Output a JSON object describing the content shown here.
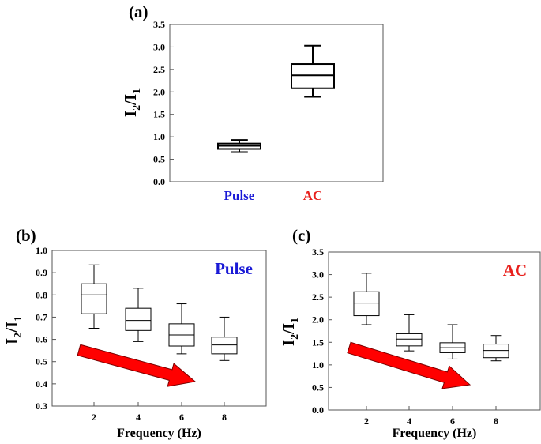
{
  "chart_data": [
    {
      "type": "box",
      "panel_label": "(a)",
      "ylabel_main": "I",
      "ylabel_sub1": "2",
      "ylabel_mid": "/I",
      "ylabel_sub2": "1",
      "ylim": [
        0.0,
        3.5
      ],
      "yticks": [
        "0.0",
        "0.5",
        "1.0",
        "1.5",
        "2.0",
        "2.5",
        "3.0",
        "3.5"
      ],
      "categories": [
        "Pulse",
        "AC"
      ],
      "category_colors": [
        "#1a1ad6",
        "#e8201c"
      ],
      "boxes": [
        {
          "min": 0.66,
          "q1": 0.73,
          "median": 0.8,
          "q3": 0.85,
          "max": 0.93
        },
        {
          "min": 1.89,
          "q1": 2.08,
          "median": 2.37,
          "q3": 2.62,
          "max": 3.03
        }
      ],
      "grid": false
    },
    {
      "type": "box",
      "panel_label": "(b)",
      "ylabel_main": "I",
      "ylabel_sub1": "2",
      "ylabel_mid": "/I",
      "ylabel_sub2": "1",
      "xlabel": "Frequency (Hz)",
      "ylim": [
        0.3,
        1.0
      ],
      "yticks": [
        "0.3",
        "0.4",
        "0.5",
        "0.6",
        "0.7",
        "0.8",
        "0.9",
        "1.0"
      ],
      "categories": [
        "2",
        "4",
        "6",
        "8"
      ],
      "boxes": [
        {
          "min": 0.65,
          "q1": 0.715,
          "median": 0.8,
          "q3": 0.85,
          "max": 0.935
        },
        {
          "min": 0.59,
          "q1": 0.64,
          "median": 0.685,
          "q3": 0.74,
          "max": 0.83
        },
        {
          "min": 0.535,
          "q1": 0.57,
          "median": 0.62,
          "q3": 0.67,
          "max": 0.76
        },
        {
          "min": 0.505,
          "q1": 0.535,
          "median": 0.575,
          "q3": 0.61,
          "max": 0.7
        }
      ],
      "annotation": "Pulse",
      "annotation_color": "#1a1ad6",
      "arrow_color": "#ff0000",
      "grid": false
    },
    {
      "type": "box",
      "panel_label": "(c)",
      "ylabel_main": "I",
      "ylabel_sub1": "2",
      "ylabel_mid": "/I",
      "ylabel_sub2": "1",
      "xlabel": "Frequency (Hz)",
      "ylim": [
        0.0,
        3.5
      ],
      "yticks": [
        "0.0",
        "0.5",
        "1.0",
        "1.5",
        "2.0",
        "2.5",
        "3.0",
        "3.5"
      ],
      "categories": [
        "2",
        "4",
        "6",
        "8"
      ],
      "boxes": [
        {
          "min": 1.89,
          "q1": 2.09,
          "median": 2.37,
          "q3": 2.62,
          "max": 3.03
        },
        {
          "min": 1.31,
          "q1": 1.42,
          "median": 1.57,
          "q3": 1.69,
          "max": 2.11
        },
        {
          "min": 1.13,
          "q1": 1.27,
          "median": 1.38,
          "q3": 1.49,
          "max": 1.89
        },
        {
          "min": 1.09,
          "q1": 1.16,
          "median": 1.32,
          "q3": 1.46,
          "max": 1.65
        }
      ],
      "annotation": "AC",
      "annotation_color": "#e8201c",
      "arrow_color": "#ff0000",
      "grid": false
    }
  ]
}
